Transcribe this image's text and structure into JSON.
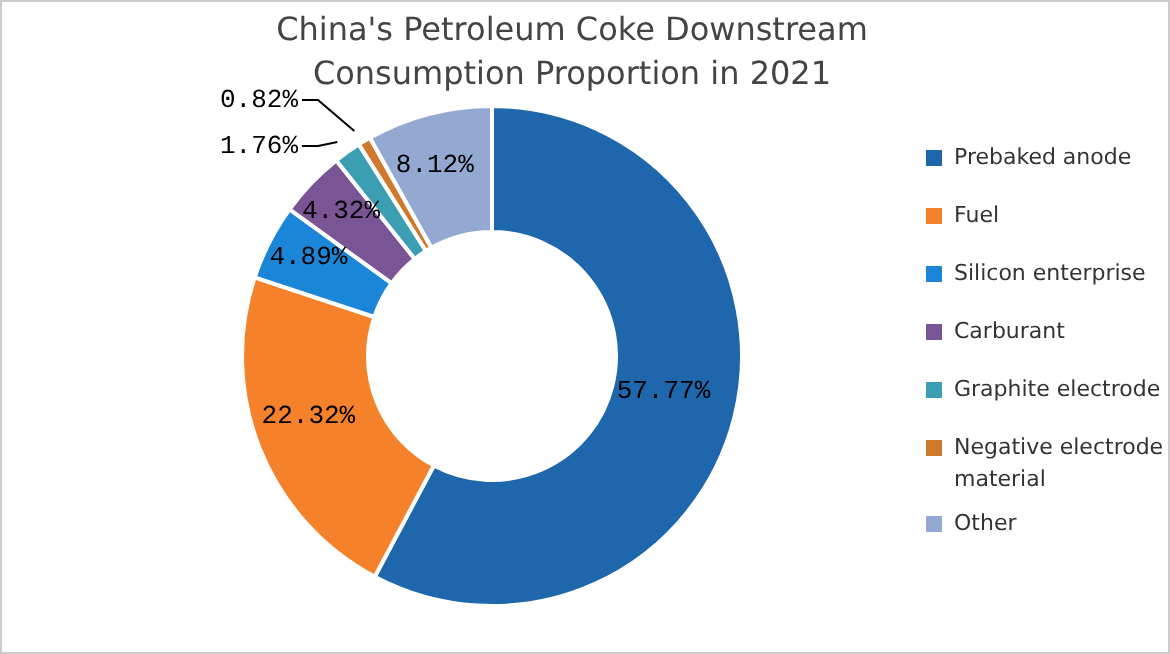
{
  "chart_data": {
    "type": "donut",
    "title": "China's Petroleum Coke Downstream Consumption Proportion in 2021",
    "categories": [
      "Prebaked anode",
      "Fuel",
      "Silicon enterprise",
      "Carburant",
      "Graphite electrode",
      "Negative electrode material",
      "Other"
    ],
    "values": [
      57.77,
      22.32,
      4.89,
      4.32,
      1.76,
      0.82,
      8.12
    ],
    "colors": [
      "#1f67ad",
      "#f5822a",
      "#1b86d8",
      "#7a5596",
      "#3b9eb3",
      "#d0782c",
      "#94a9d2"
    ],
    "value_labels": [
      "57.77%",
      "22.32%",
      "4.89%",
      "4.32%",
      "1.76%",
      "0.82%",
      "8.12%"
    ],
    "legend": "right"
  }
}
